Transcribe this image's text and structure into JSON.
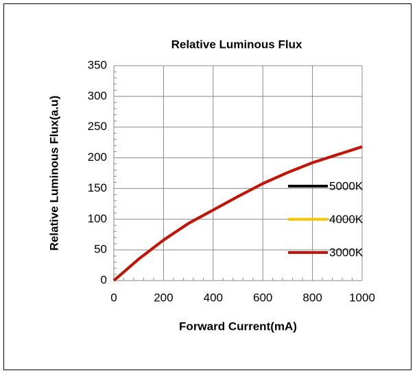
{
  "chart_data": {
    "type": "line",
    "title": "Relative Luminous Flux",
    "x_label": "Forward Current(mA)",
    "y_label": "Relative Luminous Flux(a.u)",
    "x": [
      0,
      100,
      200,
      300,
      400,
      500,
      600,
      700,
      800,
      900,
      1000
    ],
    "series": [
      {
        "name": "5000K",
        "color": "#000000",
        "values": [
          0,
          35,
          66,
          93,
          115,
          137,
          158,
          176,
          192,
          205,
          218
        ]
      },
      {
        "name": "4000K",
        "color": "#f5c400",
        "values": [
          0,
          35,
          66,
          93,
          115,
          137,
          158,
          176,
          192,
          205,
          218
        ]
      },
      {
        "name": "3000K",
        "color": "#c0140c",
        "values": [
          0,
          35,
          66,
          93,
          115,
          137,
          158,
          176,
          192,
          205,
          218
        ]
      }
    ],
    "xlim": [
      0,
      1000
    ],
    "xticks": [
      0,
      200,
      400,
      600,
      800,
      1000
    ],
    "ylim": [
      0,
      350
    ],
    "yticks": [
      0,
      50,
      100,
      150,
      200,
      250,
      300,
      350
    ],
    "grid": true,
    "legend": "right"
  }
}
